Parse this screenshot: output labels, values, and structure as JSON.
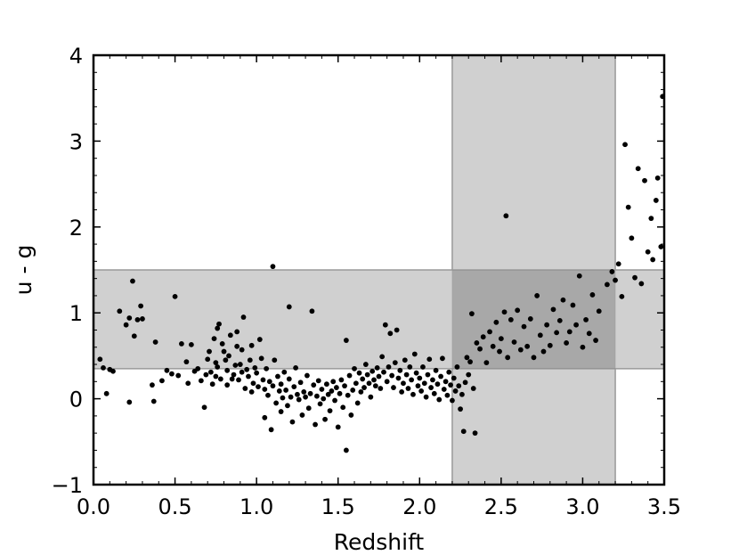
{
  "chart_data": {
    "type": "scatter",
    "title": "",
    "xlabel": "Redshift",
    "ylabel": "u - g",
    "xlim": [
      0.0,
      3.5
    ],
    "ylim": [
      -1,
      4
    ],
    "xticks": [
      "0.0",
      "0.5",
      "1.0",
      "1.5",
      "2.0",
      "2.5",
      "3.0",
      "3.5"
    ],
    "yticks": [
      "−1",
      "0",
      "1",
      "2",
      "3",
      "4"
    ],
    "grid": false,
    "legend": "none",
    "point_color": "#000000",
    "shaded_regions": [
      {
        "axis": "x",
        "from": 2.2,
        "to": 3.2,
        "color": "#c8c8c8"
      },
      {
        "axis": "y",
        "from": 0.35,
        "to": 1.5,
        "color": "#c8c8c8"
      }
    ],
    "points": [
      [
        0.04,
        0.46
      ],
      [
        0.06,
        0.36
      ],
      [
        0.08,
        0.06
      ],
      [
        0.1,
        0.34
      ],
      [
        0.12,
        0.32
      ],
      [
        0.16,
        1.02
      ],
      [
        0.2,
        0.86
      ],
      [
        0.22,
        0.94
      ],
      [
        0.22,
        -0.04
      ],
      [
        0.24,
        1.37
      ],
      [
        0.25,
        0.73
      ],
      [
        0.27,
        0.92
      ],
      [
        0.29,
        1.08
      ],
      [
        0.3,
        0.93
      ],
      [
        0.36,
        0.16
      ],
      [
        0.37,
        -0.03
      ],
      [
        0.38,
        0.66
      ],
      [
        0.42,
        0.21
      ],
      [
        0.45,
        0.33
      ],
      [
        0.48,
        0.29
      ],
      [
        0.5,
        1.19
      ],
      [
        0.52,
        0.27
      ],
      [
        0.54,
        0.64
      ],
      [
        0.57,
        0.43
      ],
      [
        0.58,
        0.18
      ],
      [
        0.6,
        0.63
      ],
      [
        0.62,
        0.32
      ],
      [
        0.64,
        0.35
      ],
      [
        0.66,
        0.21
      ],
      [
        0.68,
        -0.1
      ],
      [
        0.69,
        0.28
      ],
      [
        0.7,
        0.46
      ],
      [
        0.71,
        0.55
      ],
      [
        0.72,
        0.31
      ],
      [
        0.73,
        0.17
      ],
      [
        0.74,
        0.7
      ],
      [
        0.75,
        0.42
      ],
      [
        0.75,
        0.26
      ],
      [
        0.76,
        0.37
      ],
      [
        0.76,
        0.82
      ],
      [
        0.77,
        0.87
      ],
      [
        0.78,
        0.23
      ],
      [
        0.79,
        0.64
      ],
      [
        0.8,
        0.55
      ],
      [
        0.81,
        0.45
      ],
      [
        0.82,
        0.33
      ],
      [
        0.82,
        0.16
      ],
      [
        0.83,
        0.5
      ],
      [
        0.84,
        0.74
      ],
      [
        0.85,
        0.23
      ],
      [
        0.86,
        0.28
      ],
      [
        0.87,
        0.39
      ],
      [
        0.88,
        0.61
      ],
      [
        0.88,
        0.78
      ],
      [
        0.89,
        0.22
      ],
      [
        0.9,
        0.4
      ],
      [
        0.91,
        0.31
      ],
      [
        0.91,
        0.57
      ],
      [
        0.92,
        0.95
      ],
      [
        0.93,
        0.12
      ],
      [
        0.94,
        0.34
      ],
      [
        0.95,
        0.26
      ],
      [
        0.96,
        0.45
      ],
      [
        0.97,
        0.62
      ],
      [
        0.97,
        0.08
      ],
      [
        0.98,
        0.18
      ],
      [
        0.99,
        0.36
      ],
      [
        1.0,
        0.3
      ],
      [
        1.01,
        0.14
      ],
      [
        1.02,
        0.69
      ],
      [
        1.03,
        0.47
      ],
      [
        1.04,
        0.22
      ],
      [
        1.05,
        0.11
      ],
      [
        1.05,
        -0.22
      ],
      [
        1.06,
        0.35
      ],
      [
        1.07,
        0.04
      ],
      [
        1.08,
        0.2
      ],
      [
        1.09,
        -0.36
      ],
      [
        1.1,
        1.54
      ],
      [
        1.1,
        0.15
      ],
      [
        1.11,
        0.45
      ],
      [
        1.12,
        -0.05
      ],
      [
        1.13,
        0.26
      ],
      [
        1.14,
        0.09
      ],
      [
        1.15,
        0.17
      ],
      [
        1.15,
        -0.15
      ],
      [
        1.16,
        0.01
      ],
      [
        1.17,
        0.31
      ],
      [
        1.18,
        0.1
      ],
      [
        1.19,
        -0.08
      ],
      [
        1.2,
        1.07
      ],
      [
        1.2,
        0.23
      ],
      [
        1.21,
        0.02
      ],
      [
        1.22,
        -0.27
      ],
      [
        1.23,
        0.14
      ],
      [
        1.24,
        0.36
      ],
      [
        1.25,
        0.05
      ],
      [
        1.26,
        -0.01
      ],
      [
        1.27,
        0.19
      ],
      [
        1.28,
        -0.19
      ],
      [
        1.29,
        0.08
      ],
      [
        1.3,
        0.02
      ],
      [
        1.31,
        0.27
      ],
      [
        1.32,
        -0.11
      ],
      [
        1.33,
        0.06
      ],
      [
        1.34,
        1.02
      ],
      [
        1.35,
        0.16
      ],
      [
        1.36,
        -0.3
      ],
      [
        1.37,
        0.03
      ],
      [
        1.38,
        0.21
      ],
      [
        1.39,
        -0.06
      ],
      [
        1.4,
        0.11
      ],
      [
        1.41,
        0.0
      ],
      [
        1.42,
        -0.24
      ],
      [
        1.43,
        0.17
      ],
      [
        1.44,
        0.05
      ],
      [
        1.45,
        -0.14
      ],
      [
        1.46,
        0.09
      ],
      [
        1.47,
        0.2
      ],
      [
        1.48,
        -0.02
      ],
      [
        1.49,
        0.13
      ],
      [
        1.5,
        -0.33
      ],
      [
        1.51,
        0.06
      ],
      [
        1.52,
        0.22
      ],
      [
        1.53,
        -0.1
      ],
      [
        1.54,
        0.15
      ],
      [
        1.55,
        -0.6
      ],
      [
        1.55,
        0.68
      ],
      [
        1.56,
        0.04
      ],
      [
        1.57,
        0.27
      ],
      [
        1.58,
        -0.19
      ],
      [
        1.59,
        0.1
      ],
      [
        1.6,
        0.35
      ],
      [
        1.61,
        0.18
      ],
      [
        1.62,
        -0.05
      ],
      [
        1.63,
        0.3
      ],
      [
        1.64,
        0.08
      ],
      [
        1.65,
        0.23
      ],
      [
        1.66,
        0.13
      ],
      [
        1.67,
        0.4
      ],
      [
        1.68,
        0.28
      ],
      [
        1.69,
        0.18
      ],
      [
        1.7,
        0.02
      ],
      [
        1.71,
        0.32
      ],
      [
        1.72,
        0.22
      ],
      [
        1.73,
        0.15
      ],
      [
        1.74,
        0.36
      ],
      [
        1.75,
        0.26
      ],
      [
        1.76,
        0.12
      ],
      [
        1.77,
        0.49
      ],
      [
        1.78,
        0.31
      ],
      [
        1.79,
        0.86
      ],
      [
        1.8,
        0.2
      ],
      [
        1.81,
        0.37
      ],
      [
        1.82,
        0.76
      ],
      [
        1.83,
        0.27
      ],
      [
        1.84,
        0.13
      ],
      [
        1.85,
        0.42
      ],
      [
        1.86,
        0.8
      ],
      [
        1.87,
        0.24
      ],
      [
        1.88,
        0.33
      ],
      [
        1.89,
        0.08
      ],
      [
        1.9,
        0.18
      ],
      [
        1.91,
        0.45
      ],
      [
        1.92,
        0.28
      ],
      [
        1.93,
        0.12
      ],
      [
        1.94,
        0.37
      ],
      [
        1.95,
        0.22
      ],
      [
        1.96,
        0.05
      ],
      [
        1.97,
        0.52
      ],
      [
        1.98,
        0.3
      ],
      [
        1.99,
        0.15
      ],
      [
        2.0,
        0.24
      ],
      [
        2.01,
        0.09
      ],
      [
        2.02,
        0.37
      ],
      [
        2.03,
        0.18
      ],
      [
        2.04,
        0.02
      ],
      [
        2.05,
        0.28
      ],
      [
        2.06,
        0.46
      ],
      [
        2.07,
        0.13
      ],
      [
        2.08,
        0.22
      ],
      [
        2.09,
        0.06
      ],
      [
        2.1,
        0.33
      ],
      [
        2.11,
        0.17
      ],
      [
        2.12,
        -0.01
      ],
      [
        2.13,
        0.26
      ],
      [
        2.14,
        0.47
      ],
      [
        2.15,
        0.11
      ],
      [
        2.16,
        0.2
      ],
      [
        2.17,
        0.04
      ],
      [
        2.18,
        0.31
      ],
      [
        2.19,
        0.16
      ],
      [
        2.2,
        -0.02
      ],
      [
        2.21,
        0.24
      ],
      [
        2.22,
        0.09
      ],
      [
        2.23,
        0.37
      ],
      [
        2.24,
        0.15
      ],
      [
        2.25,
        -0.12
      ],
      [
        2.26,
        0.05
      ],
      [
        2.27,
        -0.38
      ],
      [
        2.28,
        0.19
      ],
      [
        2.29,
        0.48
      ],
      [
        2.3,
        0.28
      ],
      [
        2.31,
        0.43
      ],
      [
        2.32,
        0.99
      ],
      [
        2.33,
        0.12
      ],
      [
        2.34,
        -0.4
      ],
      [
        2.35,
        0.65
      ],
      [
        2.37,
        0.58
      ],
      [
        2.39,
        0.72
      ],
      [
        2.41,
        0.42
      ],
      [
        2.43,
        0.78
      ],
      [
        2.45,
        0.61
      ],
      [
        2.47,
        0.89
      ],
      [
        2.49,
        0.55
      ],
      [
        2.5,
        0.7
      ],
      [
        2.52,
        1.01
      ],
      [
        2.53,
        2.13
      ],
      [
        2.54,
        0.48
      ],
      [
        2.56,
        0.92
      ],
      [
        2.58,
        0.66
      ],
      [
        2.6,
        1.03
      ],
      [
        2.62,
        0.57
      ],
      [
        2.64,
        0.84
      ],
      [
        2.66,
        0.61
      ],
      [
        2.68,
        0.93
      ],
      [
        2.7,
        0.48
      ],
      [
        2.72,
        1.2
      ],
      [
        2.74,
        0.74
      ],
      [
        2.76,
        0.55
      ],
      [
        2.78,
        0.86
      ],
      [
        2.8,
        0.62
      ],
      [
        2.82,
        1.04
      ],
      [
        2.84,
        0.77
      ],
      [
        2.86,
        0.91
      ],
      [
        2.88,
        1.15
      ],
      [
        2.9,
        0.65
      ],
      [
        2.92,
        0.78
      ],
      [
        2.94,
        1.09
      ],
      [
        2.96,
        0.86
      ],
      [
        2.98,
        1.43
      ],
      [
        3.0,
        0.6
      ],
      [
        3.02,
        0.92
      ],
      [
        3.04,
        0.76
      ],
      [
        3.06,
        1.21
      ],
      [
        3.08,
        0.68
      ],
      [
        3.1,
        1.02
      ],
      [
        3.15,
        1.33
      ],
      [
        3.18,
        1.48
      ],
      [
        3.2,
        1.38
      ],
      [
        3.22,
        1.57
      ],
      [
        3.24,
        1.19
      ],
      [
        3.26,
        2.96
      ],
      [
        3.28,
        2.23
      ],
      [
        3.3,
        1.87
      ],
      [
        3.32,
        1.41
      ],
      [
        3.34,
        2.68
      ],
      [
        3.36,
        1.34
      ],
      [
        3.38,
        2.54
      ],
      [
        3.4,
        1.71
      ],
      [
        3.42,
        2.1
      ],
      [
        3.43,
        1.62
      ],
      [
        3.45,
        2.31
      ],
      [
        3.46,
        2.57
      ],
      [
        3.48,
        1.77
      ],
      [
        3.49,
        3.52
      ]
    ]
  }
}
